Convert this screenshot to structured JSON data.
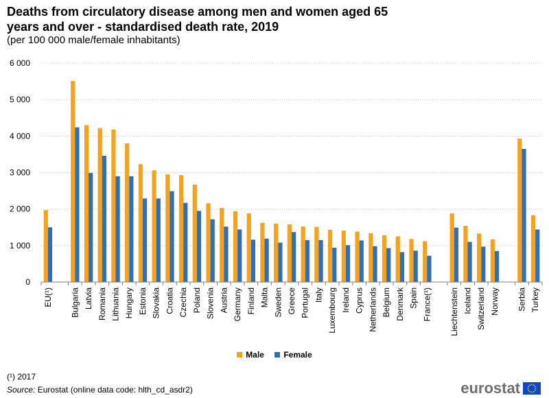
{
  "header": {
    "title": "Deaths from circulatory disease among men and women aged 65 years and over - standardised death rate, 2019",
    "subtitle": "(per 100 000 male/female inhabitants)"
  },
  "legend": {
    "male": "Male",
    "female": "Female"
  },
  "colors": {
    "male": "#f6a21d",
    "female": "#2f6fb6",
    "grid": "#c8c8c8",
    "axis": "#7f7f7f"
  },
  "footer": {
    "footnote": "(¹) 2017",
    "source_label": "Source:",
    "source_text": "Eurostat (online data code: hlth_cd_asdr2)",
    "logo": "eurostat"
  },
  "chart_data": {
    "type": "bar",
    "title": "Deaths from circulatory disease among men and women aged 65 years and over - standardised death rate, 2019",
    "ylabel": "",
    "xlabel": "",
    "ylim": [
      0,
      6000
    ],
    "yticks": [
      0,
      1000,
      2000,
      3000,
      4000,
      5000,
      6000
    ],
    "ytick_labels": [
      "0",
      "1 000",
      "2 000",
      "3 000",
      "4 000",
      "5 000",
      "6 000"
    ],
    "grid": true,
    "legend_position": "bottom",
    "groups": [
      [
        "EU(¹)"
      ],
      [
        "Bulgaria",
        "Latvia",
        "Romania",
        "Lithuania",
        "Hungary",
        "Estonia",
        "Slovakia",
        "Croatia",
        "Czechia",
        "Poland",
        "Slovenia",
        "Austria",
        "Germany",
        "Finland",
        "Malta",
        "Sweden",
        "Greece",
        "Portugal",
        "Italy",
        "Luxembourg",
        "Ireland",
        "Cyprus",
        "Netherlands",
        "Belgium",
        "Denmark",
        "Spain",
        "France(¹)"
      ],
      [
        "Liechtenstein",
        "Iceland",
        "Switzerland",
        "Norway"
      ],
      [
        "Serbia",
        "Turkey"
      ]
    ],
    "categories": [
      "EU(¹)",
      "Bulgaria",
      "Latvia",
      "Romania",
      "Lithuania",
      "Hungary",
      "Estonia",
      "Slovakia",
      "Croatia",
      "Czechia",
      "Poland",
      "Slovenia",
      "Austria",
      "Germany",
      "Finland",
      "Malta",
      "Sweden",
      "Greece",
      "Portugal",
      "Italy",
      "Luxembourg",
      "Ireland",
      "Cyprus",
      "Netherlands",
      "Belgium",
      "Denmark",
      "Spain",
      "France(¹)",
      "Liechtenstein",
      "Iceland",
      "Switzerland",
      "Norway",
      "Serbia",
      "Turkey"
    ],
    "series": [
      {
        "name": "Male",
        "values": [
          1970,
          5510,
          4300,
          4220,
          4180,
          3800,
          3230,
          3060,
          2950,
          2930,
          2670,
          2160,
          2030,
          1940,
          1880,
          1620,
          1600,
          1580,
          1520,
          1510,
          1430,
          1410,
          1380,
          1340,
          1280,
          1250,
          1180,
          1120,
          1880,
          1540,
          1330,
          1170,
          3930,
          1830
        ]
      },
      {
        "name": "Female",
        "values": [
          1500,
          4240,
          2990,
          3460,
          2900,
          2900,
          2290,
          2290,
          2490,
          2170,
          1950,
          1720,
          1520,
          1440,
          1160,
          1190,
          1080,
          1370,
          1150,
          1150,
          940,
          1010,
          1140,
          980,
          930,
          820,
          860,
          720,
          1490,
          1100,
          970,
          850,
          3650,
          1440
        ]
      }
    ]
  }
}
